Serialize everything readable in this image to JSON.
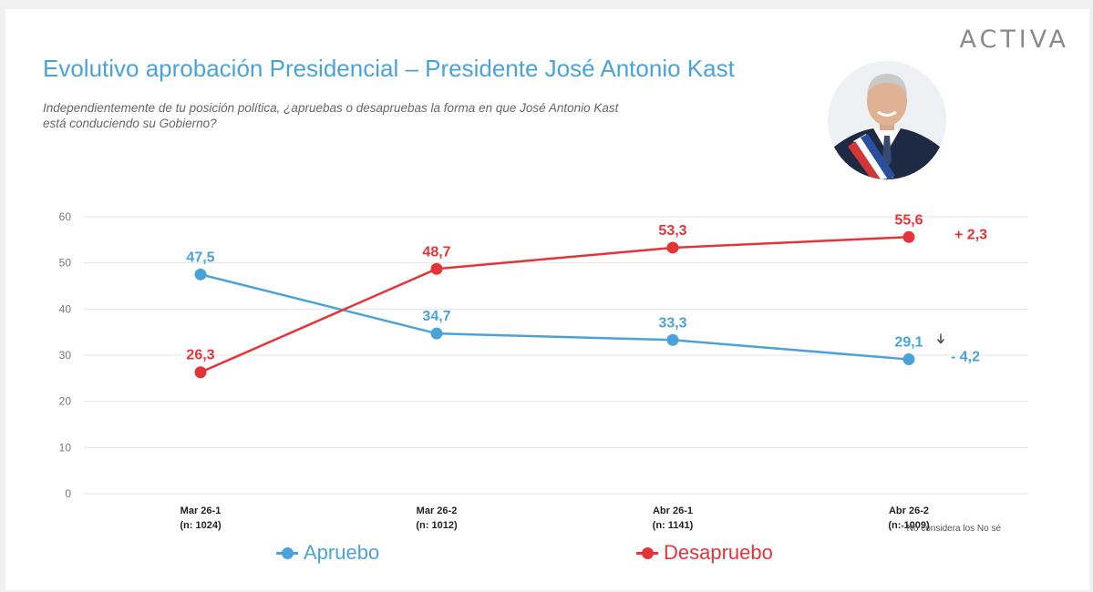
{
  "brand": "ACTIVA",
  "title": "Evolutivo aprobación Presidencial – Presidente José Antonio Kast",
  "subtitle": "Independientemente de tu posición política, ¿apruebas o desapruebas la forma en que José Antonio Kast está conduciendo su Gobierno?",
  "note": "* No considera los No sé",
  "colors": {
    "apruebo": "#4aa3d8",
    "desapruebo": "#e3343a",
    "grid": "#e4e4e4",
    "axis_text": "#777777"
  },
  "chart_data": {
    "type": "line",
    "categories": [
      {
        "line1": "Mar 26-1",
        "line2": "(n: 1024)"
      },
      {
        "line1": "Mar 26-2",
        "line2": "(n: 1012)"
      },
      {
        "line1": "Abr 26-1",
        "line2": "(n: 1141)"
      },
      {
        "line1": "Abr 26-2",
        "line2": "(n: 1009)"
      }
    ],
    "y_ticks": [
      "0",
      "10",
      "20",
      "30",
      "40",
      "50",
      "60"
    ],
    "ylim": [
      0,
      60
    ],
    "grid": true,
    "legend_position": "bottom",
    "series": [
      {
        "name": "Apruebo",
        "color": "#4aa3d8",
        "values": [
          47.5,
          34.7,
          33.3,
          29.1
        ],
        "labels": [
          "47,5",
          "34,7",
          "33,3",
          "29,1"
        ],
        "change": "- 4,2",
        "change_icon": "down-arrow-icon"
      },
      {
        "name": "Desapruebo",
        "color": "#e3343a",
        "values": [
          26.3,
          48.7,
          53.3,
          55.6
        ],
        "labels": [
          "26,3",
          "48,7",
          "53,3",
          "55,6"
        ],
        "change": "+ 2,3"
      }
    ]
  }
}
